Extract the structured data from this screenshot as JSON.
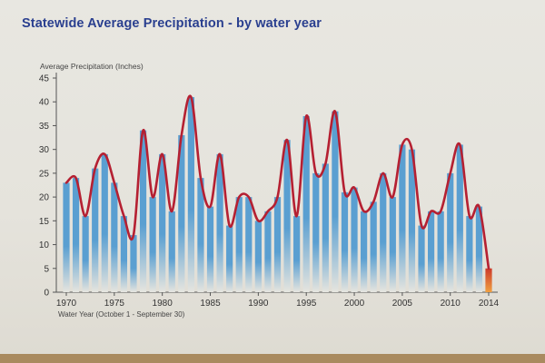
{
  "chart_data": {
    "type": "bar",
    "title": "Statewide Average Precipitation - by water year",
    "ylabel": "Average Precipitation (Inches)",
    "xlabel": "Water Year (October 1 - September 30)",
    "ylim": [
      0,
      45
    ],
    "yticks": [
      0,
      5,
      10,
      15,
      20,
      25,
      30,
      35,
      40,
      45
    ],
    "xticks": [
      1970,
      1975,
      1980,
      1985,
      1990,
      1995,
      2000,
      2005,
      2010,
      2014
    ],
    "x": [
      1970,
      1971,
      1972,
      1973,
      1974,
      1975,
      1976,
      1977,
      1978,
      1979,
      1980,
      1981,
      1982,
      1983,
      1984,
      1985,
      1986,
      1987,
      1988,
      1989,
      1990,
      1991,
      1992,
      1993,
      1994,
      1995,
      1996,
      1997,
      1998,
      1999,
      2000,
      2001,
      2002,
      2003,
      2004,
      2005,
      2006,
      2007,
      2008,
      2009,
      2010,
      2011,
      2012,
      2013,
      2014
    ],
    "values": [
      23,
      24,
      16,
      26,
      29,
      23,
      16,
      12,
      34,
      20,
      29,
      17,
      33,
      41,
      24,
      18,
      29,
      14,
      20,
      20,
      15,
      17,
      20,
      32,
      16,
      37,
      25,
      27,
      38,
      21,
      22,
      17,
      19,
      25,
      20,
      31,
      30,
      14,
      17,
      17,
      25,
      31,
      16,
      18,
      5
    ],
    "highlight_last": true,
    "colors": {
      "bar": "#5a9fd1",
      "bar_fade": "#e6e5df",
      "highlight": "#cc3a2a",
      "highlight_fade": "#f0a040",
      "trend": "#b52032",
      "title": "#2a3f8f",
      "axis": "#555555"
    }
  }
}
